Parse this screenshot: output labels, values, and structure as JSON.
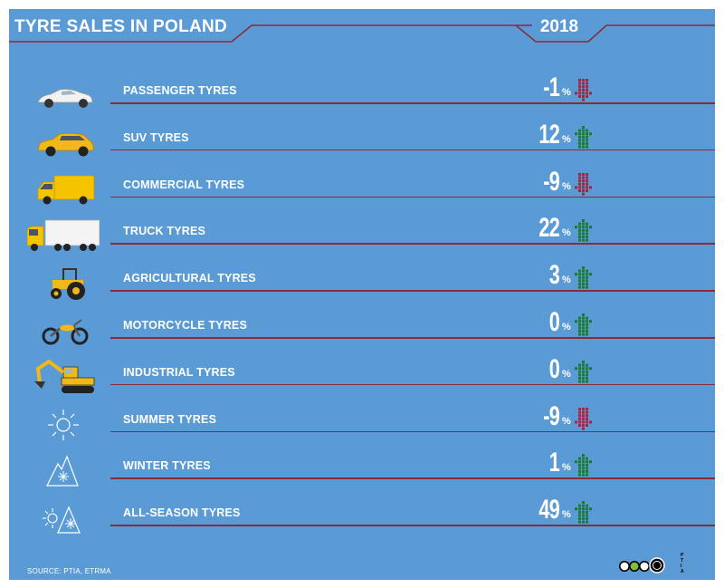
{
  "header": {
    "title": "TYRE SALES IN POLAND",
    "year": "2018"
  },
  "colors": {
    "background": "#5b9bd5",
    "separator": "#8a2a3a",
    "up_arrow": "#1a7a2e",
    "down_arrow": "#b0203a",
    "text": "#ffffff"
  },
  "rows": [
    {
      "label": "PASSENGER TYRES",
      "value": "-1",
      "unit": "%",
      "trend": "down",
      "icon": "passenger-car-icon"
    },
    {
      "label": "SUV TYRES",
      "value": "12",
      "unit": "%",
      "trend": "up",
      "icon": "suv-icon"
    },
    {
      "label": "COMMERCIAL TYRES",
      "value": "-9",
      "unit": "%",
      "trend": "down",
      "icon": "van-icon"
    },
    {
      "label": "TRUCK TYRES",
      "value": "22",
      "unit": "%",
      "trend": "up",
      "icon": "truck-icon"
    },
    {
      "label": "AGRICULTURAL TYRES",
      "value": "3",
      "unit": "%",
      "trend": "up",
      "icon": "tractor-icon"
    },
    {
      "label": "MOTORCYCLE TYRES",
      "value": "0",
      "unit": "%",
      "trend": "up",
      "icon": "motorcycle-icon"
    },
    {
      "label": "INDUSTRIAL TYRES",
      "value": "0",
      "unit": "%",
      "trend": "up",
      "icon": "excavator-icon"
    },
    {
      "label": "SUMMER TYRES",
      "value": "-9",
      "unit": "%",
      "trend": "down",
      "icon": "sun-icon"
    },
    {
      "label": "WINTER TYRES",
      "value": "1",
      "unit": "%",
      "trend": "up",
      "icon": "snowflake-mountain-icon"
    },
    {
      "label": "ALL-SEASON TYRES",
      "value": "49",
      "unit": "%",
      "trend": "up",
      "icon": "sun-snow-mountain-icon"
    }
  ],
  "footer": {
    "source": "SOURCE: PTIA, ETRMA",
    "logo_lines": [
      "P",
      "T",
      "I",
      "A"
    ]
  }
}
